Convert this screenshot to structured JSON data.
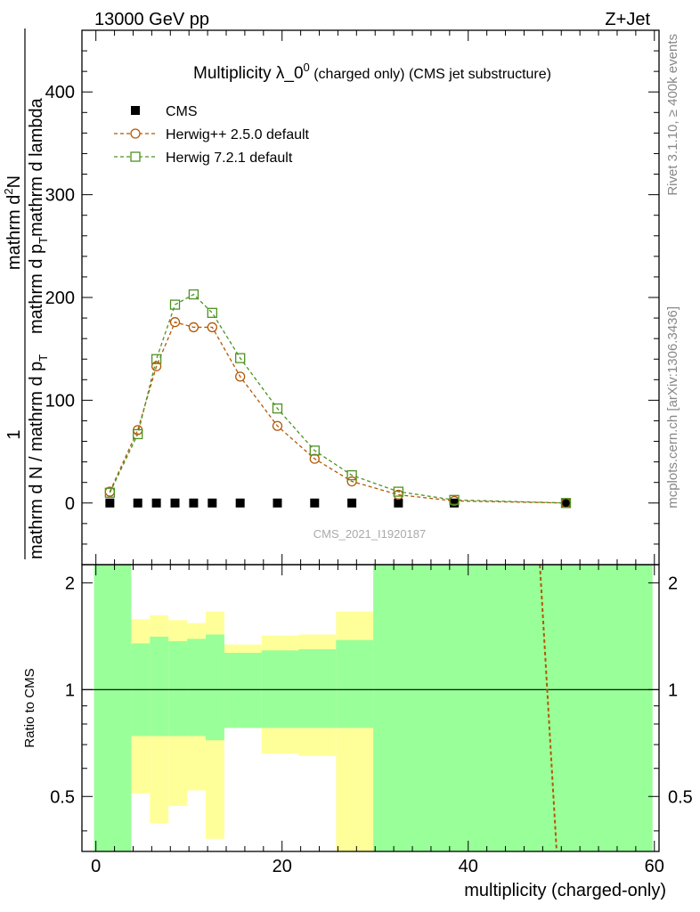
{
  "header": {
    "left": "13000 GeV pp",
    "right": "Z+Jet"
  },
  "side_labels": {
    "rivet": "Rivet 3.1.10, ≥ 400k events",
    "mcplots": "mcplots.cern.ch [arXiv:1306.3436]"
  },
  "watermark": "CMS_2021_I1920187",
  "colors": {
    "cms": "#000000",
    "herwigpp": "#b35806",
    "herwig7": "#4d9221",
    "band_green": "#99ff99",
    "band_yellow": "#ffff99"
  },
  "chart_data": [
    {
      "type": "scatter",
      "panel": "main",
      "title_main": "Multiplicity λ_0",
      "title_sup": "0",
      "title_rest": " (charged only) (CMS jet substructure)",
      "ylabel_left": "1",
      "ylabel_left_lower": "mathrm d N / mathrm d p",
      "ylabel_left_lower_sub": "T",
      "ylabel_right_upper": "mathrm d",
      "ylabel_right_upper_sup": "2",
      "ylabel_right_upper_tail": "N",
      "ylabel_right_lower": "mathrm d p",
      "ylabel_right_lower_sub": "T",
      "ylabel_right_lower_tail": "mathrm d lambda",
      "xlim": [
        -1.5,
        60.5
      ],
      "ylim": [
        -60,
        460
      ],
      "yticks": [
        0,
        100,
        200,
        300,
        400
      ],
      "legend": [
        {
          "label": "CMS",
          "marker": "square-filled",
          "color_key": "cms"
        },
        {
          "label": "Herwig++ 2.5.0 default",
          "marker": "circle-open",
          "color_key": "herwigpp"
        },
        {
          "label": "Herwig 7.2.1 default",
          "marker": "square-open",
          "color_key": "herwig7"
        }
      ],
      "series": [
        {
          "name": "CMS",
          "x": [
            1.5,
            4.5,
            6.5,
            8.5,
            10.5,
            12.5,
            15.5,
            19.5,
            23.5,
            27.5,
            32.5,
            38.5,
            50.5
          ],
          "y": [
            0,
            0,
            0,
            0,
            0,
            0,
            0,
            0,
            0,
            0,
            0,
            0,
            0
          ]
        },
        {
          "name": "Herwig++ 2.5.0 default",
          "x": [
            1.5,
            4.5,
            6.5,
            8.5,
            10.5,
            12.5,
            15.5,
            19.5,
            23.5,
            27.5,
            32.5,
            38.5,
            50.5
          ],
          "y": [
            11,
            71,
            133,
            176,
            171,
            171,
            123,
            75,
            43,
            21,
            8,
            2,
            0
          ]
        },
        {
          "name": "Herwig 7.2.1 default",
          "x": [
            1.5,
            4.5,
            6.5,
            8.5,
            10.5,
            12.5,
            15.5,
            19.5,
            23.5,
            27.5,
            32.5,
            38.5,
            50.5
          ],
          "y": [
            10,
            67,
            140,
            193,
            203,
            185,
            141,
            92,
            51,
            27,
            11,
            3,
            0
          ]
        }
      ]
    },
    {
      "type": "line",
      "panel": "ratio",
      "ylabel": "Ratio to CMS",
      "xlabel": "multiplicity (charged-only)",
      "xlim": [
        -1.5,
        60.5
      ],
      "ylim": [
        0.35,
        2.25
      ],
      "yticks": [
        0.5,
        1,
        2
      ],
      "xticks": [
        0,
        20,
        40,
        60
      ],
      "green_band": [
        {
          "x0": -0.2,
          "x1": 3.8,
          "lo": 0.0,
          "hi": 9.0
        },
        {
          "x0": 3.8,
          "x1": 5.8,
          "lo": 0.74,
          "hi": 1.35
        },
        {
          "x0": 5.8,
          "x1": 7.8,
          "lo": 0.74,
          "hi": 1.41
        },
        {
          "x0": 7.8,
          "x1": 9.8,
          "lo": 0.74,
          "hi": 1.37
        },
        {
          "x0": 9.8,
          "x1": 11.8,
          "lo": 0.74,
          "hi": 1.39
        },
        {
          "x0": 11.8,
          "x1": 13.8,
          "lo": 0.72,
          "hi": 1.43
        },
        {
          "x0": 13.8,
          "x1": 17.8,
          "lo": 0.78,
          "hi": 1.27
        },
        {
          "x0": 17.8,
          "x1": 21.8,
          "lo": 0.78,
          "hi": 1.29
        },
        {
          "x0": 21.8,
          "x1": 25.8,
          "lo": 0.78,
          "hi": 1.3
        },
        {
          "x0": 25.8,
          "x1": 29.8,
          "lo": 0.78,
          "hi": 1.38
        },
        {
          "x0": 29.8,
          "x1": 59.8,
          "lo": 0.0,
          "hi": 9.0
        }
      ],
      "yellow_band": [
        {
          "x0": 3.8,
          "x1": 5.8,
          "lo": 0.51,
          "hi": 1.58
        },
        {
          "x0": 5.8,
          "x1": 7.8,
          "lo": 0.42,
          "hi": 1.62
        },
        {
          "x0": 7.8,
          "x1": 9.8,
          "lo": 0.47,
          "hi": 1.57
        },
        {
          "x0": 9.8,
          "x1": 11.8,
          "lo": 0.52,
          "hi": 1.54
        },
        {
          "x0": 11.8,
          "x1": 13.8,
          "lo": 0.38,
          "hi": 1.66
        },
        {
          "x0": 13.8,
          "x1": 17.8,
          "lo": 0.8,
          "hi": 1.34
        },
        {
          "x0": 17.8,
          "x1": 21.8,
          "lo": 0.66,
          "hi": 1.42
        },
        {
          "x0": 21.8,
          "x1": 25.8,
          "lo": 0.65,
          "hi": 1.43
        },
        {
          "x0": 25.8,
          "x1": 29.8,
          "lo": 0.3,
          "hi": 1.66
        },
        {
          "x0": 35.8,
          "x1": 41.8,
          "lo": 1.9,
          "hi": 9.0
        }
      ],
      "series": [
        {
          "name": "Herwig++ 2.5.0 default",
          "x": [
            47.7,
            49.5
          ],
          "y": [
            2.4,
            0.33
          ]
        }
      ]
    }
  ]
}
